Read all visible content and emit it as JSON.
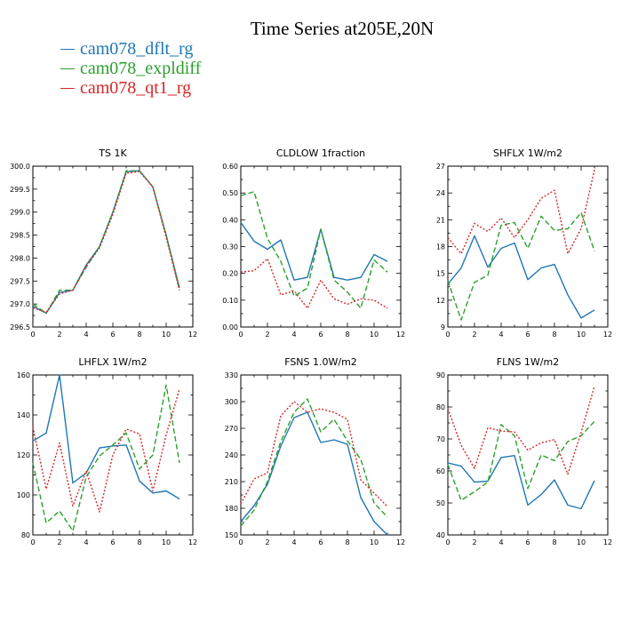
{
  "title": "Time Series at205E,20N",
  "legend": [
    {
      "label": "cam078_dflt_rg",
      "color": "#1f77b4"
    },
    {
      "label": "cam078_expldiff",
      "color": "#2ca02c"
    },
    {
      "label": "cam078_qt1_rg",
      "color": "#d62728"
    }
  ],
  "chart_data": [
    {
      "type": "line",
      "title": "TS   1K",
      "xlim": [
        0,
        12
      ],
      "xticks": [
        0,
        2,
        4,
        6,
        8,
        10,
        12
      ],
      "ylim": [
        296.5,
        300.0
      ],
      "yticks": [
        "296.5",
        "297.0",
        "297.5",
        "298.0",
        "298.5",
        "299.0",
        "299.5",
        "300.0"
      ],
      "x": [
        0,
        1,
        2,
        3,
        4,
        5,
        6,
        7,
        8,
        9,
        10,
        11
      ],
      "series": [
        {
          "name": "cam078_dflt_rg",
          "values": [
            296.95,
            296.8,
            297.25,
            297.3,
            297.85,
            298.25,
            299.0,
            299.88,
            299.9,
            299.55,
            298.5,
            297.35
          ]
        },
        {
          "name": "cam078_expldiff",
          "values": [
            297.0,
            296.8,
            297.3,
            297.3,
            297.8,
            298.25,
            299.0,
            299.9,
            299.9,
            299.55,
            298.5,
            297.3
          ]
        },
        {
          "name": "cam078_qt1_rg",
          "values": [
            296.92,
            296.82,
            297.22,
            297.3,
            297.82,
            298.22,
            298.95,
            299.85,
            299.88,
            299.55,
            298.45,
            297.3
          ]
        }
      ]
    },
    {
      "type": "line",
      "title": "CLDLOW   1fraction",
      "xlim": [
        0,
        12
      ],
      "xticks": [
        0,
        2,
        4,
        6,
        8,
        10,
        12
      ],
      "ylim": [
        0.0,
        0.6
      ],
      "yticks": [
        "0.00",
        "0.10",
        "0.20",
        "0.30",
        "0.40",
        "0.50",
        "0.60"
      ],
      "x": [
        0,
        1,
        2,
        3,
        4,
        5,
        6,
        7,
        8,
        9,
        10,
        11
      ],
      "series": [
        {
          "name": "cam078_dflt_rg",
          "values": [
            0.39,
            0.32,
            0.29,
            0.325,
            0.175,
            0.185,
            0.365,
            0.185,
            0.175,
            0.185,
            0.27,
            0.245
          ]
        },
        {
          "name": "cam078_expldiff",
          "values": [
            0.49,
            0.505,
            0.33,
            0.245,
            0.115,
            0.145,
            0.365,
            0.175,
            0.13,
            0.07,
            0.25,
            0.205
          ]
        },
        {
          "name": "cam078_qt1_rg",
          "values": [
            0.205,
            0.21,
            0.255,
            0.12,
            0.135,
            0.07,
            0.175,
            0.105,
            0.085,
            0.105,
            0.1,
            0.07
          ]
        }
      ]
    },
    {
      "type": "line",
      "title": "SHFLX   1W/m2",
      "xlim": [
        0,
        12
      ],
      "xticks": [
        0,
        2,
        4,
        6,
        8,
        10,
        12
      ],
      "ylim": [
        9,
        27
      ],
      "yticks": [
        "9",
        "12",
        "15",
        "18",
        "21",
        "24",
        "27"
      ],
      "x": [
        0,
        1,
        2,
        3,
        4,
        5,
        6,
        7,
        8,
        9,
        10,
        11
      ],
      "series": [
        {
          "name": "cam078_dflt_rg",
          "values": [
            13.8,
            15.6,
            19.2,
            15.7,
            17.8,
            18.4,
            14.3,
            15.6,
            16.0,
            12.6,
            10.0,
            10.9
          ]
        },
        {
          "name": "cam078_expldiff",
          "values": [
            14.2,
            9.8,
            14.0,
            14.8,
            20.4,
            20.7,
            17.8,
            21.4,
            19.8,
            20.0,
            21.8,
            17.5
          ]
        },
        {
          "name": "cam078_qt1_rg",
          "values": [
            19.0,
            17.2,
            20.6,
            19.7,
            21.2,
            19.0,
            21.0,
            23.4,
            24.3,
            17.2,
            20.0,
            26.6
          ]
        }
      ]
    },
    {
      "type": "line",
      "title": "LHFLX   1W/m2",
      "xlim": [
        0,
        12
      ],
      "xticks": [
        0,
        2,
        4,
        6,
        8,
        10,
        12
      ],
      "ylim": [
        80,
        160
      ],
      "yticks": [
        "80",
        "100",
        "120",
        "140",
        "160"
      ],
      "x": [
        0,
        1,
        2,
        3,
        4,
        5,
        6,
        7,
        8,
        9,
        10,
        11
      ],
      "series": [
        {
          "name": "cam078_dflt_rg",
          "values": [
            127,
            131,
            160,
            106,
            111,
            123.5,
            124.5,
            125,
            107,
            101,
            102,
            98
          ]
        },
        {
          "name": "cam078_expldiff",
          "values": [
            116,
            86,
            92,
            82,
            109,
            119.5,
            125,
            131,
            113,
            120,
            155,
            116
          ]
        },
        {
          "name": "cam078_qt1_rg",
          "values": [
            134,
            103,
            126,
            94.5,
            112,
            91.5,
            120,
            133,
            130.5,
            102,
            130,
            153
          ]
        }
      ]
    },
    {
      "type": "line",
      "title": "FSNS   1.0W/m2",
      "xlim": [
        0,
        12
      ],
      "xticks": [
        0,
        2,
        4,
        6,
        8,
        10,
        12
      ],
      "ylim": [
        150,
        330
      ],
      "yticks": [
        "150",
        "180",
        "210",
        "240",
        "270",
        "300",
        "330"
      ],
      "x": [
        0,
        1,
        2,
        3,
        4,
        5,
        6,
        7,
        8,
        9,
        10,
        11
      ],
      "series": [
        {
          "name": "cam078_dflt_rg",
          "values": [
            165,
            183,
            207,
            250,
            282,
            288,
            254,
            257,
            252,
            192,
            165,
            150
          ]
        },
        {
          "name": "cam078_expldiff",
          "values": [
            160,
            178,
            210,
            255,
            288,
            303,
            266,
            280,
            256,
            235,
            186,
            170
          ]
        },
        {
          "name": "cam078_qt1_rg",
          "values": [
            185,
            213,
            220,
            284,
            300,
            288,
            292,
            288,
            280,
            212,
            197,
            182
          ]
        }
      ]
    },
    {
      "type": "line",
      "title": "FLNS   1W/m2",
      "xlim": [
        0,
        12
      ],
      "xticks": [
        0,
        2,
        4,
        6,
        8,
        10,
        12
      ],
      "ylim": [
        40,
        90
      ],
      "yticks": [
        "40",
        "50",
        "60",
        "70",
        "80",
        "90"
      ],
      "x": [
        0,
        1,
        2,
        3,
        4,
        5,
        6,
        7,
        8,
        9,
        10,
        11
      ],
      "series": [
        {
          "name": "cam078_dflt_rg",
          "values": [
            62.5,
            61.5,
            56.5,
            56.8,
            64.2,
            64.8,
            49.3,
            52.6,
            57.2,
            49.3,
            48.2,
            57.0
          ]
        },
        {
          "name": "cam078_expldiff",
          "values": [
            62.0,
            50.8,
            53.5,
            56.5,
            74.5,
            71.0,
            54.5,
            65.0,
            63.2,
            69.2,
            71.0,
            75.5
          ]
        },
        {
          "name": "cam078_qt1_rg",
          "values": [
            79.5,
            68.0,
            60.8,
            73.5,
            72.5,
            72.2,
            66.5,
            68.8,
            69.8,
            59.0,
            72.0,
            86.5
          ]
        }
      ]
    }
  ]
}
